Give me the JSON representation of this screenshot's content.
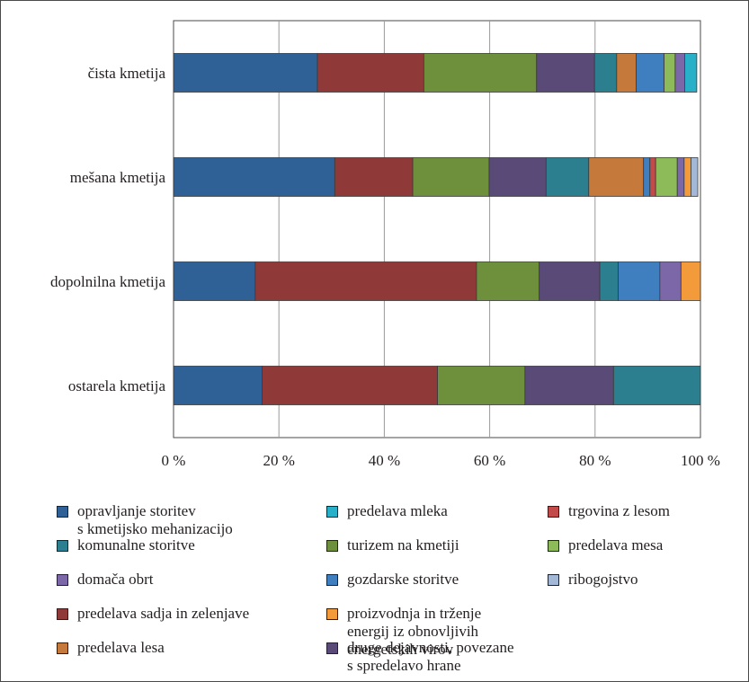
{
  "chart_data": {
    "type": "bar",
    "orientation": "horizontal",
    "stacked": true,
    "xlim": [
      0,
      100
    ],
    "x_ticks": [
      "0 %",
      "20 %",
      "40 %",
      "60 %",
      "80 %",
      "100 %"
    ],
    "grid": "vertical",
    "legend_position": "bottom",
    "categories": [
      "čista kmetija",
      "mešana kmetija",
      "dopolnilna kmetija",
      "ostarela kmetija"
    ],
    "series": [
      {
        "name": "opravljanje storitev\ns kmetijsko mehanizacijo",
        "color": "#2f6096",
        "values": [
          27.3,
          30.6,
          15.5,
          16.8
        ]
      },
      {
        "name": "predelava sadja in zelenjave",
        "color": "#8f3a38",
        "values": [
          20.2,
          14.8,
          42.0,
          33.3
        ]
      },
      {
        "name": "turizem na kmetiji",
        "color": "#6e8f3c",
        "values": [
          21.4,
          14.5,
          11.9,
          16.6
        ]
      },
      {
        "name": "druge dejavnosti, povezane\ns spredelavo hrane",
        "color": "#5a4a78",
        "values": [
          11.0,
          10.8,
          11.5,
          16.8
        ]
      },
      {
        "name": "komunalne storitve",
        "color": "#2c7f8e",
        "values": [
          4.2,
          8.1,
          3.5,
          16.5
        ]
      },
      {
        "name": "predelava lesa",
        "color": "#c57a3c",
        "values": [
          3.7,
          10.4,
          0,
          0
        ]
      },
      {
        "name": "gozdarske storitve",
        "color": "#3f7fc0",
        "values": [
          5.3,
          1.2,
          7.9,
          0
        ]
      },
      {
        "name": "trgovina z lesom",
        "color": "#c24a48",
        "values": [
          0,
          1.1,
          0,
          0
        ]
      },
      {
        "name": "predelava mesa",
        "color": "#8dbb59",
        "values": [
          2.1,
          4.1,
          0,
          0
        ]
      },
      {
        "name": "domača obrt",
        "color": "#7c68a8",
        "values": [
          1.8,
          1.3,
          4.0,
          0
        ]
      },
      {
        "name": "predelava mleka",
        "color": "#28b0c8",
        "values": [
          2.3,
          0,
          0,
          0
        ]
      },
      {
        "name": "proizvodnja in trženje\nenergij iz obnovljivih\nenergetskih  virov",
        "color": "#f39a3a",
        "values": [
          0,
          1.3,
          3.7,
          0
        ]
      },
      {
        "name": "ribogojstvo",
        "color": "#a3b7d6",
        "values": [
          0,
          1.3,
          0,
          0
        ]
      }
    ],
    "legend_order": [
      0,
      4,
      9,
      1,
      5,
      10,
      2,
      6,
      11,
      3,
      7,
      8,
      12
    ]
  }
}
